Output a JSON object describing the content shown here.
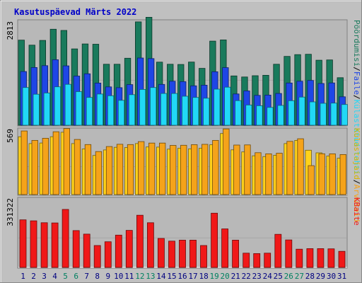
{
  "chart_data": [
    {
      "type": "bar",
      "title": "Kasutuspäevad Märts 2022",
      "ylabel": "2813",
      "categories": [
        "1",
        "2",
        "3",
        "4",
        "5",
        "6",
        "7",
        "8",
        "9",
        "10",
        "11",
        "12",
        "13",
        "14",
        "15",
        "16",
        "17",
        "18",
        "19",
        "20",
        "21",
        "22",
        "23",
        "24",
        "25",
        "26",
        "27",
        "28",
        "29",
        "30",
        "31"
      ],
      "weekend_days": [
        "5",
        "6",
        "12",
        "13",
        "19",
        "20",
        "26",
        "27"
      ],
      "ylim": [
        0,
        2813
      ],
      "series": [
        {
          "name": "Pöördumisi",
          "color": "#197a5c",
          "values": [
            2286,
            2151,
            2279,
            2579,
            2547,
            2050,
            2183,
            2176,
            1639,
            1639,
            1799,
            2776,
            2901,
            1696,
            1639,
            1632,
            1697,
            1529,
            2259,
            2292,
            1325,
            1296,
            1331,
            1342,
            1639,
            1850,
            1896,
            1906,
            1747,
            1754,
            1278
          ]
        },
        {
          "name": "Faile",
          "color": "#1e46e6",
          "values": [
            1442,
            1551,
            1601,
            1760,
            1595,
            1321,
            1382,
            1132,
            1031,
            1010,
            1091,
            1806,
            1790,
            1097,
            1182,
            1171,
            1059,
            1076,
            1437,
            1548,
            840,
            921,
            803,
            809,
            853,
            1134,
            1182,
            1203,
            1122,
            1137,
            764
          ]
        },
        {
          "name": "Külastatud lehti",
          "color": "#21d8f6",
          "values": [
            1014,
            833,
            867,
            1032,
            1099,
            903,
            747,
            838,
            792,
            669,
            822,
            962,
            1013,
            853,
            853,
            779,
            747,
            726,
            970,
            1022,
            662,
            544,
            524,
            479,
            532,
            659,
            757,
            627,
            589,
            594,
            557
          ]
        }
      ]
    },
    {
      "type": "bar",
      "ylabel": "569",
      "categories": [
        "1",
        "2",
        "3",
        "4",
        "5",
        "6",
        "7",
        "8",
        "9",
        "10",
        "11",
        "12",
        "13",
        "14",
        "15",
        "16",
        "17",
        "18",
        "19",
        "20",
        "21",
        "22",
        "23",
        "24",
        "25",
        "26",
        "27",
        "28",
        "29",
        "30",
        "31"
      ],
      "ylim": [
        0,
        569
      ],
      "series": [
        {
          "name": "Külastajaid",
          "color": "#ffd21a",
          "values": [
            506,
            446,
            451,
            506,
            545,
            446,
            399,
            342,
            390,
            413,
            411,
            446,
            416,
            415,
            397,
            406,
            400,
            406,
            436,
            534,
            391,
            373,
            339,
            332,
            344,
            446,
            474,
            388,
            365,
            337,
            318
          ]
        },
        {
          "name": "Arvuteid",
          "color": "#f5a31a",
          "values": [
            556,
            474,
            492,
            549,
            577,
            482,
            437,
            376,
            420,
            440,
            437,
            463,
            450,
            450,
            430,
            431,
            436,
            439,
            474,
            574,
            433,
            434,
            366,
            356,
            362,
            465,
            488,
            253,
            357,
            356,
            350
          ]
        }
      ]
    },
    {
      "type": "bar",
      "ylabel": "331322",
      "categories": [
        "1",
        "2",
        "3",
        "4",
        "5",
        "6",
        "7",
        "8",
        "9",
        "10",
        "11",
        "12",
        "13",
        "14",
        "15",
        "16",
        "17",
        "18",
        "19",
        "20",
        "21",
        "22",
        "23",
        "24",
        "25",
        "26",
        "27",
        "28",
        "29",
        "30",
        "31"
      ],
      "ylim": [
        0,
        331322
      ],
      "series": [
        {
          "name": "KBaite",
          "color": "#f01818",
          "values": [
            230000,
            225000,
            216000,
            215000,
            280000,
            178000,
            161000,
            106000,
            124000,
            156000,
            179000,
            252000,
            216000,
            140000,
            127000,
            132000,
            132000,
            106000,
            262000,
            186000,
            132000,
            69000,
            67000,
            69000,
            160000,
            133000,
            88000,
            91000,
            91000,
            90000,
            78000
          ]
        }
      ]
    }
  ],
  "legend": {
    "panel1": [
      {
        "text": "Pöördumisi",
        "color": "#197a5c"
      },
      {
        "text": "Faile",
        "color": "#1e46e6"
      },
      {
        "text": "Külastatud lehti",
        "color": "#21d8f6"
      }
    ],
    "panel2": [
      {
        "text": "Külastajaid",
        "color": "#d8b400"
      },
      {
        "text": "Arvuteid",
        "color": "#f5a31a"
      }
    ],
    "panel3": [
      {
        "text": "KBaite",
        "color": "#f01818"
      }
    ],
    "separator": "/"
  },
  "colors": {
    "weekday_label": "#000080",
    "weekend_label": "#008060"
  }
}
